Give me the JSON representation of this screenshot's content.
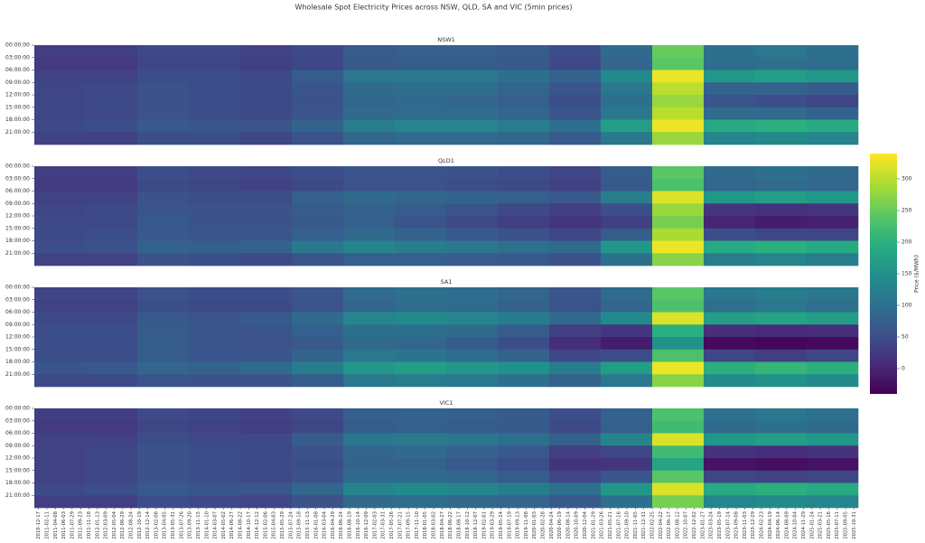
{
  "chart_data": {
    "type": "heatmap",
    "title": "Wholesale Spot Electricity Prices across NSW, QLD, SA and VIC (5min prices)",
    "colorbar_label": "Price ($/MWh)",
    "colormap": "viridis",
    "clim": [
      -40,
      340
    ],
    "cticks": [
      0,
      50,
      100,
      150,
      200,
      250,
      300
    ],
    "rows": [
      "00:00:00",
      "03:00:00",
      "06:00:00",
      "09:00:00",
      "12:00:00",
      "15:00:00",
      "18:00:00",
      "21:00:00"
    ],
    "categories": [
      "2010-12-17",
      "2011-02-11",
      "2011-04-08",
      "2011-06-03",
      "2011-07-29",
      "2011-09-23",
      "2011-11-18",
      "2012-01-13",
      "2012-03-09",
      "2012-05-04",
      "2012-06-29",
      "2012-08-24",
      "2012-10-19",
      "2012-12-14",
      "2013-02-08",
      "2013-04-05",
      "2013-05-31",
      "2013-07-26",
      "2013-09-20",
      "2013-11-15",
      "2014-01-10",
      "2014-03-07",
      "2014-05-02",
      "2014-06-27",
      "2014-08-22",
      "2014-10-17",
      "2014-12-12",
      "2015-02-06",
      "2015-04-03",
      "2015-05-29",
      "2015-07-24",
      "2015-09-18",
      "2015-11-13",
      "2016-01-08",
      "2016-03-04",
      "2016-04-29",
      "2016-06-24",
      "2016-08-19",
      "2016-10-14",
      "2016-12-09",
      "2017-02-03",
      "2017-03-31",
      "2017-05-26",
      "2017-07-21",
      "2017-09-15",
      "2017-11-10",
      "2018-01-05",
      "2018-03-02",
      "2018-04-27",
      "2018-06-22",
      "2018-08-17",
      "2018-10-12",
      "2018-12-07",
      "2019-02-01",
      "2019-03-29",
      "2019-05-24",
      "2019-07-19",
      "2019-09-13",
      "2019-11-08",
      "2020-01-03",
      "2020-02-28",
      "2020-04-24",
      "2020-06-19",
      "2020-08-14",
      "2020-10-09",
      "2020-12-04",
      "2021-01-29",
      "2021-03-26",
      "2021-05-21",
      "2021-07-16",
      "2021-09-10",
      "2021-11-05",
      "2021-12-31",
      "2022-02-25",
      "2022-04-22",
      "2022-06-17",
      "2022-08-12",
      "2022-10-07",
      "2022-12-02",
      "2023-01-27",
      "2023-03-24",
      "2023-05-19",
      "2023-07-14",
      "2023-09-08",
      "2023-11-03",
      "2023-12-29",
      "2024-02-23",
      "2024-04-19",
      "2024-06-14",
      "2024-08-09",
      "2024-10-04",
      "2024-11-29",
      "2025-01-24",
      "2025-03-21",
      "2025-05-16",
      "2025-07-11",
      "2025-09-05",
      "2025-10-31"
    ],
    "panels": [
      {
        "title": "NSW1",
        "values": [
          [
            30,
            25,
            35,
            40,
            40,
            40,
            45,
            35
          ],
          [
            30,
            25,
            35,
            45,
            45,
            45,
            50,
            35
          ],
          [
            45,
            40,
            50,
            55,
            55,
            55,
            65,
            50
          ],
          [
            45,
            40,
            50,
            50,
            50,
            50,
            60,
            50
          ],
          [
            35,
            30,
            45,
            45,
            45,
            45,
            60,
            40
          ],
          [
            45,
            40,
            70,
            60,
            55,
            60,
            80,
            55
          ],
          [
            70,
            65,
            110,
            90,
            85,
            90,
            120,
            85
          ],
          [
            75,
            70,
            110,
            95,
            90,
            95,
            130,
            90
          ],
          [
            75,
            70,
            110,
            95,
            85,
            95,
            130,
            90
          ],
          [
            70,
            65,
            100,
            85,
            75,
            85,
            120,
            85
          ],
          [
            50,
            45,
            80,
            60,
            50,
            60,
            100,
            65
          ],
          [
            90,
            85,
            140,
            110,
            100,
            110,
            170,
            110
          ],
          [
            250,
            240,
            330,
            300,
            280,
            300,
            330,
            280
          ],
          [
            100,
            95,
            160,
            80,
            60,
            90,
            190,
            130
          ],
          [
            110,
            100,
            170,
            80,
            50,
            90,
            200,
            140
          ],
          [
            100,
            95,
            160,
            70,
            40,
            80,
            190,
            130
          ]
        ]
      },
      {
        "title": "QLD1",
        "values": [
          [
            30,
            25,
            35,
            40,
            45,
            45,
            50,
            35
          ],
          [
            30,
            25,
            35,
            45,
            45,
            50,
            55,
            35
          ],
          [
            50,
            45,
            55,
            60,
            65,
            65,
            80,
            55
          ],
          [
            45,
            40,
            50,
            55,
            55,
            60,
            75,
            50
          ],
          [
            40,
            35,
            50,
            55,
            55,
            60,
            80,
            45
          ],
          [
            50,
            45,
            75,
            70,
            65,
            75,
            110,
            60
          ],
          [
            60,
            55,
            90,
            80,
            75,
            90,
            130,
            75
          ],
          [
            60,
            55,
            85,
            70,
            60,
            80,
            120,
            75
          ],
          [
            55,
            50,
            80,
            60,
            45,
            65,
            110,
            70
          ],
          [
            50,
            45,
            75,
            45,
            30,
            55,
            100,
            65
          ],
          [
            40,
            35,
            65,
            30,
            20,
            40,
            90,
            55
          ],
          [
            70,
            65,
            120,
            50,
            30,
            70,
            160,
            100
          ],
          [
            240,
            230,
            320,
            280,
            260,
            290,
            330,
            270
          ],
          [
            90,
            85,
            160,
            20,
            0,
            50,
            190,
            120
          ],
          [
            100,
            90,
            170,
            15,
            -10,
            40,
            200,
            130
          ],
          [
            90,
            85,
            160,
            20,
            -5,
            40,
            190,
            120
          ]
        ]
      },
      {
        "title": "SA1",
        "values": [
          [
            40,
            35,
            45,
            50,
            50,
            50,
            60,
            45
          ],
          [
            40,
            35,
            45,
            50,
            50,
            50,
            65,
            45
          ],
          [
            55,
            50,
            65,
            70,
            70,
            70,
            85,
            60
          ],
          [
            50,
            45,
            60,
            60,
            60,
            60,
            80,
            55
          ],
          [
            50,
            45,
            65,
            60,
            55,
            60,
            90,
            55
          ],
          [
            60,
            55,
            90,
            75,
            65,
            80,
            120,
            70
          ],
          [
            90,
            85,
            130,
            100,
            90,
            110,
            160,
            110
          ],
          [
            100,
            95,
            140,
            100,
            85,
            105,
            170,
            120
          ],
          [
            95,
            90,
            130,
            90,
            70,
            95,
            160,
            110
          ],
          [
            85,
            80,
            120,
            70,
            50,
            80,
            150,
            100
          ],
          [
            60,
            55,
            90,
            30,
            10,
            40,
            120,
            80
          ],
          [
            90,
            85,
            140,
            20,
            -10,
            50,
            170,
            110
          ],
          [
            240,
            230,
            320,
            200,
            150,
            230,
            330,
            270
          ],
          [
            110,
            100,
            170,
            10,
            -30,
            40,
            200,
            140
          ],
          [
            120,
            110,
            180,
            5,
            -35,
            30,
            210,
            150
          ],
          [
            110,
            100,
            170,
            10,
            -30,
            40,
            200,
            140
          ]
        ]
      },
      {
        "title": "VIC1",
        "values": [
          [
            30,
            25,
            35,
            35,
            35,
            35,
            45,
            30
          ],
          [
            30,
            25,
            35,
            40,
            40,
            40,
            50,
            30
          ],
          [
            45,
            40,
            50,
            55,
            55,
            55,
            65,
            50
          ],
          [
            40,
            35,
            45,
            50,
            50,
            50,
            60,
            45
          ],
          [
            35,
            30,
            45,
            45,
            45,
            45,
            60,
            40
          ],
          [
            45,
            40,
            70,
            55,
            50,
            55,
            85,
            55
          ],
          [
            75,
            70,
            110,
            85,
            80,
            90,
            130,
            90
          ],
          [
            80,
            75,
            115,
            90,
            80,
            90,
            140,
            95
          ],
          [
            75,
            70,
            110,
            80,
            65,
            85,
            130,
            90
          ],
          [
            70,
            65,
            100,
            65,
            50,
            70,
            120,
            85
          ],
          [
            50,
            45,
            80,
            30,
            15,
            40,
            100,
            65
          ],
          [
            80,
            75,
            130,
            40,
            20,
            60,
            160,
            100
          ],
          [
            230,
            220,
            320,
            220,
            180,
            240,
            320,
            260
          ],
          [
            100,
            90,
            160,
            15,
            -20,
            40,
            190,
            130
          ],
          [
            110,
            100,
            170,
            10,
            -25,
            35,
            200,
            140
          ],
          [
            100,
            90,
            160,
            15,
            -20,
            40,
            190,
            130
          ]
        ]
      }
    ]
  }
}
